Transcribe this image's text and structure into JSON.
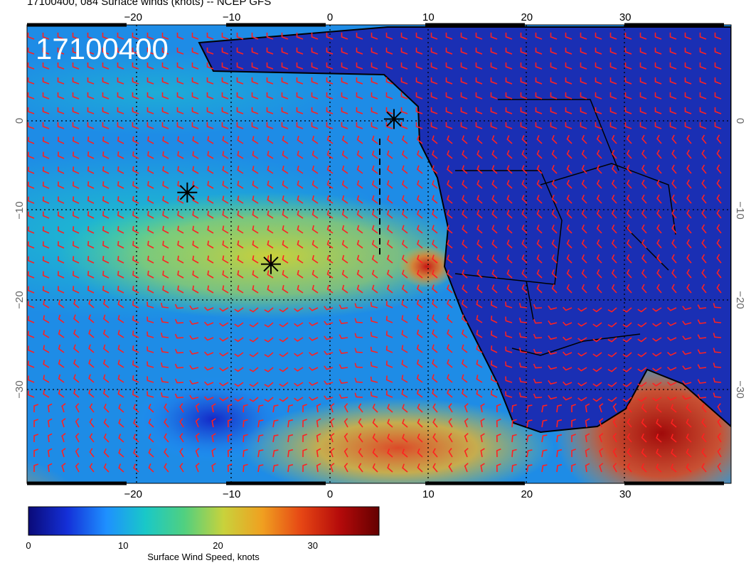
{
  "title": "17100400, 084 Surface winds (knots) -- NCEP GFS",
  "stamp": "17100400",
  "map": {
    "lon_range": [
      -30,
      40
    ],
    "lat_range": [
      -40,
      10
    ],
    "lon_ticks": [
      "−20",
      "−10",
      "0",
      "10",
      "20",
      "30"
    ],
    "lat_ticks": [
      "0",
      "−10",
      "−20",
      "−30"
    ],
    "grid": "dotted every 10 degrees",
    "markers": [
      {
        "name": "storm-marker-1",
        "lon": 6.5,
        "lat": 0.2
      },
      {
        "name": "storm-marker-2",
        "lon": -14.5,
        "lat": -8.0
      },
      {
        "name": "storm-marker-3",
        "lon": -6.0,
        "lat": -16.0
      }
    ],
    "track": {
      "lon": 5,
      "lat": [
        -2.5,
        -15
      ]
    }
  },
  "colorbar": {
    "label": "Surface Wind Speed, knots",
    "ticks": [
      "0",
      "10",
      "20",
      "30"
    ],
    "range": [
      0,
      37
    ],
    "colors": [
      "#0a0a78",
      "#1430d8",
      "#1e90ff",
      "#19c8c8",
      "#50d080",
      "#c8d23c",
      "#f0a020",
      "#e64614",
      "#b40a0a",
      "#640000"
    ]
  }
}
